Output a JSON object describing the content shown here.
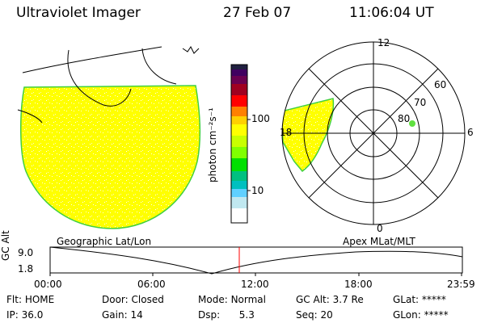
{
  "header": {
    "instrument": "Ultraviolet Imager",
    "date": "27 Feb 07",
    "time": "11:06:04 UT"
  },
  "colorbar": {
    "label": "photon cm⁻²s⁻¹",
    "ticks": [
      "100",
      "10"
    ],
    "colors": [
      "#202040",
      "#400060",
      "#a00020",
      "#ff0000",
      "#ff8000",
      "#ffd000",
      "#ffff00",
      "#c8ff00",
      "#80ff00",
      "#00e000",
      "#00c080",
      "#00c0c0",
      "#60d0ff",
      "#c0e8f0",
      "#ffffff"
    ]
  },
  "polar": {
    "mlt_labels": {
      "top": "12",
      "right": "6",
      "bottom": "0",
      "left": "18"
    },
    "lat_labels": [
      "60",
      "70",
      "80"
    ]
  },
  "panel_labels": {
    "left": "Geographic Lat/Lon",
    "right": "Apex MLat/MLT"
  },
  "timeline": {
    "ylabel": "GC Alt",
    "ymax": "9.0",
    "ymin": "1.8",
    "xticks": [
      "00:00",
      "06:00",
      "12:00",
      "18:00",
      "23:59"
    ]
  },
  "status": [
    {
      "label": "Flt:",
      "value": "HOME"
    },
    {
      "label": "Door:",
      "value": "Closed"
    },
    {
      "label": "Mode:",
      "value": "Normal"
    },
    {
      "label": "GC Alt:",
      "value": "3.7 Re"
    },
    {
      "label": "GLat:",
      "value": "*****"
    },
    {
      "label": "IP:",
      "value": "36.0"
    },
    {
      "label": "Gain:",
      "value": "14"
    },
    {
      "label": "Dsp:",
      "value": "5.3"
    },
    {
      "label": "Seq:",
      "value": "20"
    },
    {
      "label": "GLon:",
      "value": "*****"
    }
  ]
}
